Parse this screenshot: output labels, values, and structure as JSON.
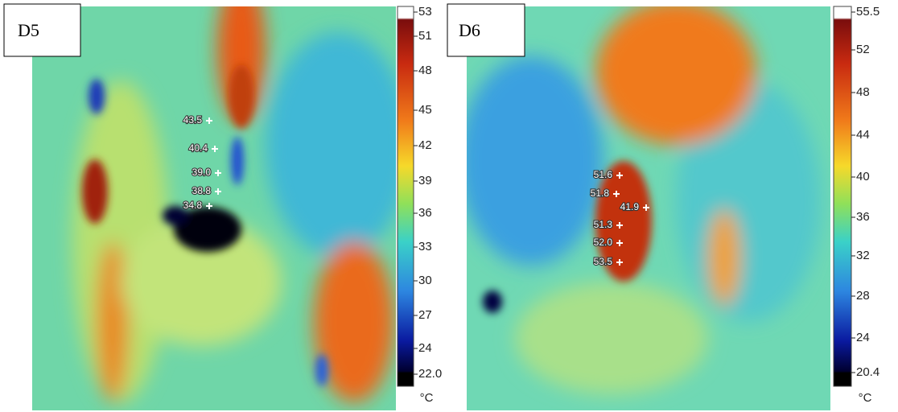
{
  "panels": [
    {
      "label": "D5",
      "unit": "°C",
      "scale": [
        "53",
        "51",
        "48",
        "45",
        "42",
        "39",
        "36",
        "33",
        "30",
        "27",
        "24",
        "22.0"
      ],
      "spots": [
        "43.5",
        "40.4",
        "39.0",
        "38.8",
        "34.8"
      ]
    },
    {
      "label": "D6",
      "unit": "°C",
      "scale": [
        "55.5",
        "52",
        "48",
        "44",
        "40",
        "36",
        "32",
        "28",
        "24",
        "20.4"
      ],
      "spots": [
        "51.6",
        "51.8",
        "41.9",
        "51.3",
        "52.0",
        "53.5"
      ]
    }
  ]
}
